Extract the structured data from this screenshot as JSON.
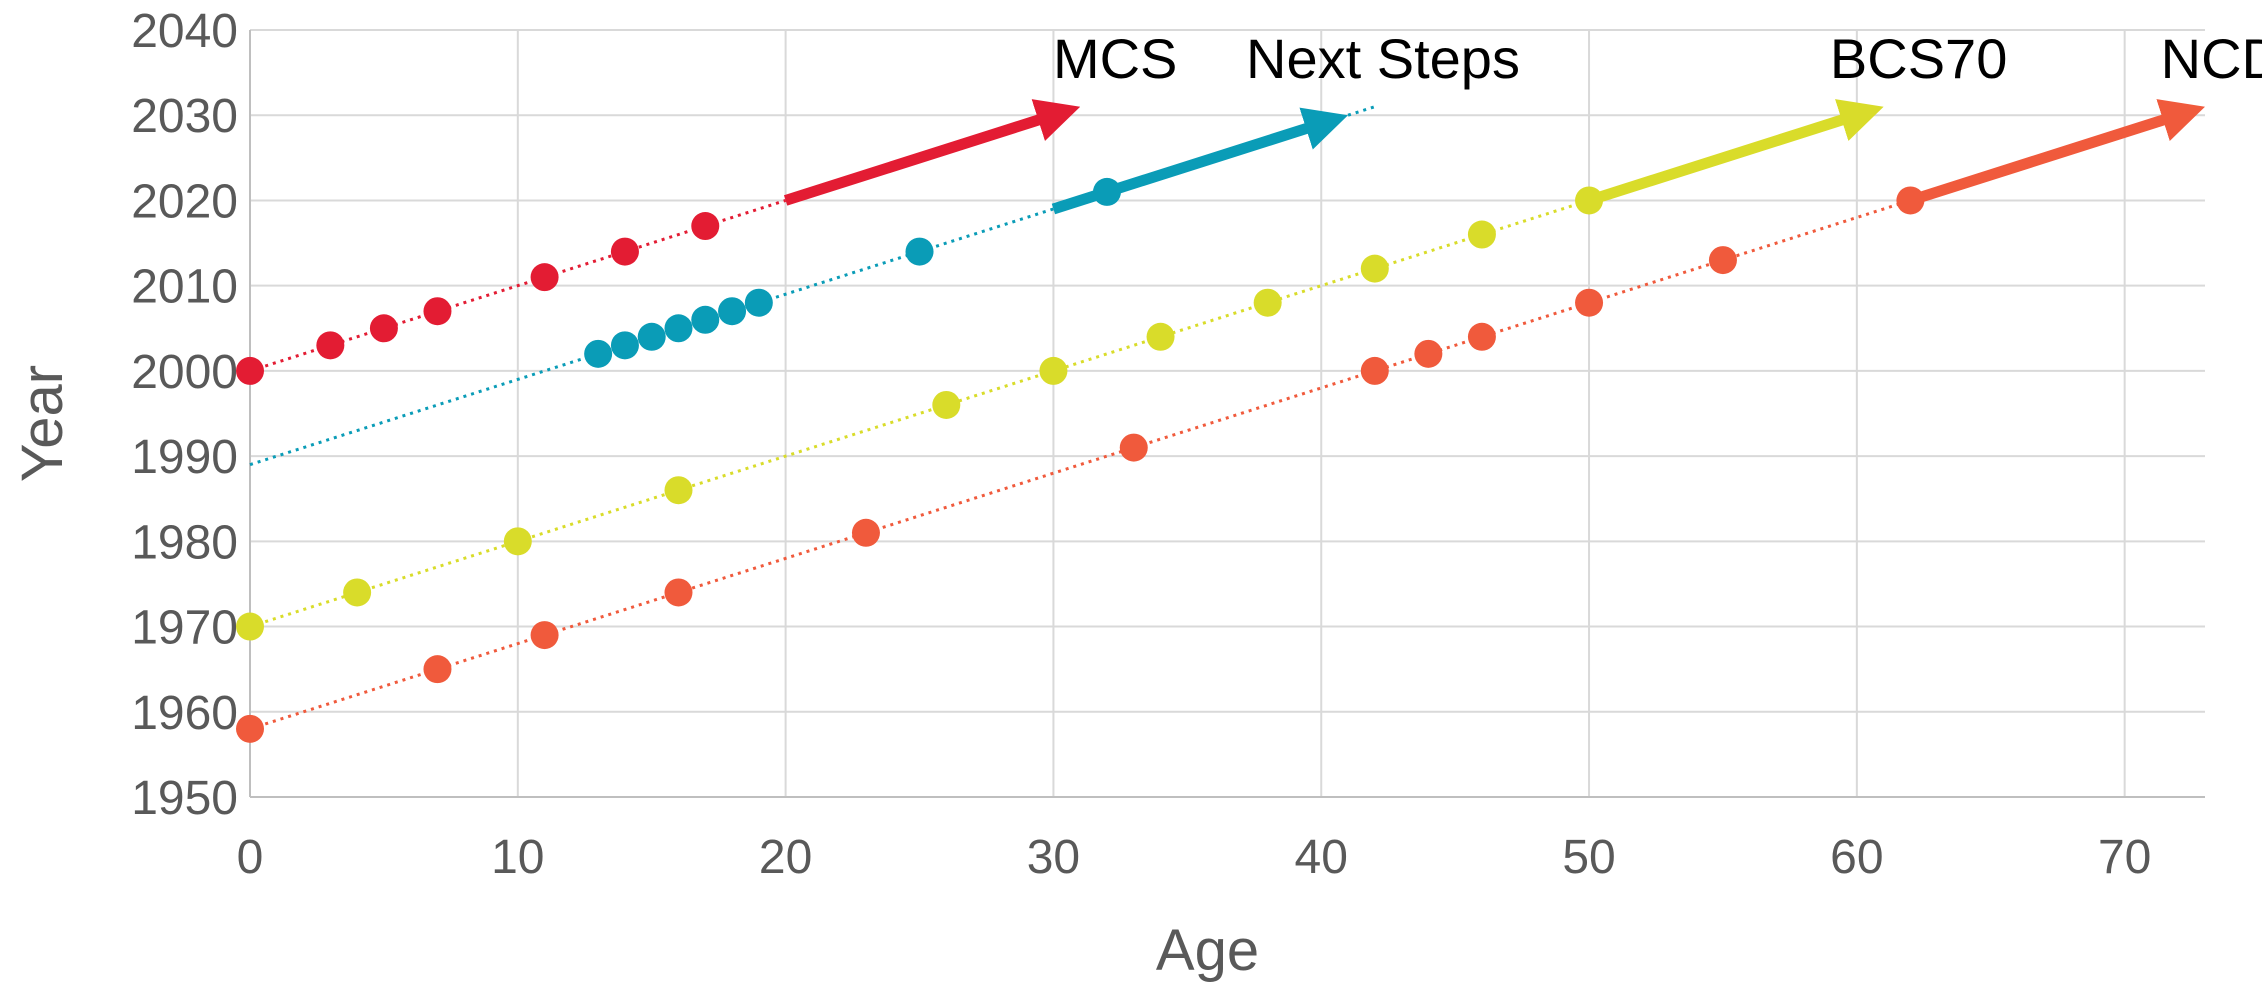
{
  "chart_data": {
    "type": "scatter",
    "title": "",
    "xlabel": "Age",
    "ylabel": "Year",
    "xlim": [
      0,
      73
    ],
    "ylim": [
      1950,
      2040
    ],
    "x_ticks": [
      0,
      10,
      20,
      30,
      40,
      50,
      60,
      70
    ],
    "y_ticks": [
      1950,
      1960,
      1970,
      1980,
      1990,
      2000,
      2010,
      2020,
      2030,
      2040
    ],
    "grid": true,
    "legend": "series labels placed at arrow ends",
    "series": [
      {
        "name": "MCS",
        "color": "#e31c33",
        "points": [
          [
            0,
            2000
          ],
          [
            3,
            2003
          ],
          [
            5,
            2005
          ],
          [
            7,
            2007
          ],
          [
            11,
            2011
          ],
          [
            14,
            2014
          ],
          [
            17,
            2017
          ]
        ],
        "trend": [
          [
            0,
            2000
          ],
          [
            20,
            2020
          ]
        ],
        "arrow": [
          [
            20,
            2020
          ],
          [
            31,
            2031
          ]
        ]
      },
      {
        "name": "Next Steps",
        "color": "#0a9cb7",
        "points": [
          [
            13,
            2002
          ],
          [
            14,
            2003
          ],
          [
            15,
            2004
          ],
          [
            16,
            2005
          ],
          [
            17,
            2006
          ],
          [
            18,
            2007
          ],
          [
            19,
            2008
          ],
          [
            25,
            2014
          ],
          [
            32,
            2021
          ]
        ],
        "trend": [
          [
            0,
            1989
          ],
          [
            30,
            2019
          ]
        ],
        "arrow": [
          [
            30,
            2019
          ],
          [
            41,
            2030
          ]
        ],
        "trend_tail": [
          [
            41,
            2030
          ],
          [
            42,
            2031
          ]
        ]
      },
      {
        "name": "BCS70",
        "color": "#d9dc2a",
        "points": [
          [
            0,
            1970
          ],
          [
            4,
            1974
          ],
          [
            10,
            1980
          ],
          [
            16,
            1986
          ],
          [
            26,
            1996
          ],
          [
            30,
            2000
          ],
          [
            34,
            2004
          ],
          [
            38,
            2008
          ],
          [
            42,
            2012
          ],
          [
            46,
            2016
          ],
          [
            50,
            2020
          ]
        ],
        "trend": [
          [
            0,
            1970
          ],
          [
            50,
            2020
          ]
        ],
        "arrow": [
          [
            50,
            2020
          ],
          [
            61,
            2031
          ]
        ]
      },
      {
        "name": "NCDS",
        "color": "#f05a3c",
        "points": [
          [
            0,
            1958
          ],
          [
            7,
            1965
          ],
          [
            11,
            1969
          ],
          [
            16,
            1974
          ],
          [
            23,
            1981
          ],
          [
            33,
            1991
          ],
          [
            42,
            2000
          ],
          [
            44,
            2002
          ],
          [
            46,
            2004
          ],
          [
            50,
            2008
          ],
          [
            55,
            2013
          ],
          [
            62,
            2020
          ]
        ],
        "trend": [
          [
            0,
            1958
          ],
          [
            62,
            2020
          ]
        ],
        "arrow": [
          [
            62,
            2020
          ],
          [
            73,
            2031
          ]
        ]
      }
    ]
  }
}
